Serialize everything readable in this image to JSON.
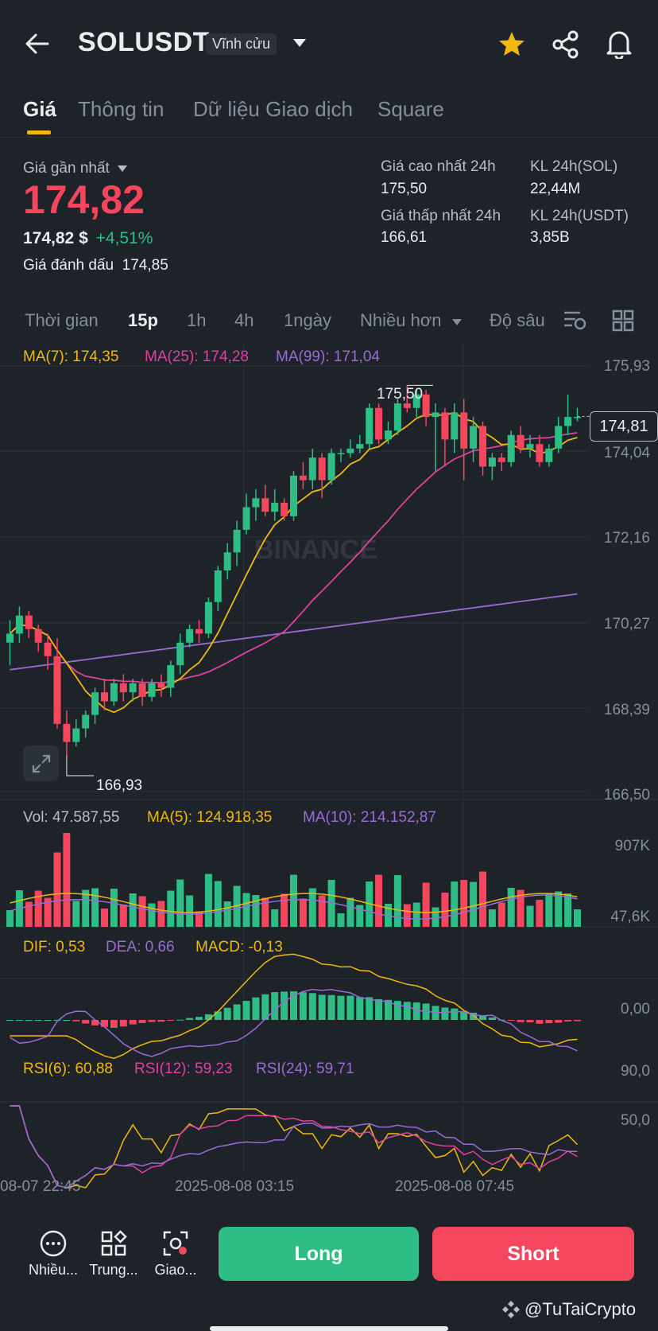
{
  "header": {
    "title": "SOLUSDT",
    "badge": "Vĩnh cửu"
  },
  "tabs": [
    {
      "label": "Giá",
      "active": true
    },
    {
      "label": "Thông tin",
      "active": false
    },
    {
      "label": "Dữ liệu Giao dịch",
      "active": false
    },
    {
      "label": "Square",
      "active": false
    }
  ],
  "price": {
    "last_label": "Giá gần nhất",
    "last_value": "174,82",
    "usd_value": "174,82 $",
    "change": "+4,51%",
    "mark_label": "Giá đánh dấu",
    "mark_value": "174,85"
  },
  "stats": {
    "high_label": "Giá cao nhất 24h",
    "high_value": "175,50",
    "low_label": "Giá thấp nhất 24h",
    "low_value": "166,61",
    "vol_sol_label": "KL 24h(SOL)",
    "vol_sol_value": "22,44M",
    "vol_usdt_label": "KL 24h(USDT)",
    "vol_usdt_value": "3,85B"
  },
  "timeframes": [
    {
      "label": "Thời gian",
      "active": false
    },
    {
      "label": "15p",
      "active": true
    },
    {
      "label": "1h",
      "active": false
    },
    {
      "label": "4h",
      "active": false
    },
    {
      "label": "1ngày",
      "active": false
    },
    {
      "label": "Nhiều hơn",
      "active": false
    },
    {
      "label": "Độ sâu",
      "active": false
    }
  ],
  "indicators": {
    "ma7": "MA(7): 174,35",
    "ma25": "MA(25): 174,28",
    "ma99": "MA(99): 171,04",
    "vol": "Vol: 47.587,55",
    "vol_ma5": "MA(5): 124.918,35",
    "vol_ma10": "MA(10): 214.152,87",
    "dif": "DIF: 0,53",
    "dea": "DEA: 0,66",
    "macd": "MACD: -0,13",
    "rsi6": "RSI(6): 60,88",
    "rsi12": "RSI(12): 59,23",
    "rsi24": "RSI(24): 59,71"
  },
  "price_axis": [
    "175,93",
    "174,04",
    "172,16",
    "170,27",
    "168,39",
    "166,50"
  ],
  "current_price_tag": "174,81",
  "high_annotation": "175,50",
  "low_annotation": "166,93",
  "watermark": "BINANCE",
  "vol_axis": [
    "907K",
    "47,6K"
  ],
  "macd_axis": [
    "0,00"
  ],
  "rsi_axis": [
    "90,0",
    "50,0"
  ],
  "time_axis": [
    "08-07 22:45",
    "2025-08-08 03:15",
    "2025-08-08 07:45"
  ],
  "bottom_nav": [
    {
      "label": "Nhiều..."
    },
    {
      "label": "Trung..."
    },
    {
      "label": "Giao..."
    }
  ],
  "actions": {
    "long": "Long",
    "short": "Short"
  },
  "credit": "@TuTaiCrypto",
  "colors": {
    "up": "#2ebd85",
    "down": "#f6465d",
    "accent": "#f0b90b",
    "ma7": "#f0b90b",
    "ma25": "#e040a0",
    "ma99": "#9b6bd6",
    "bg": "#1e2329"
  },
  "chart_data": {
    "type": "candlestick",
    "ylim": [
      166.5,
      175.93
    ],
    "candles": [
      [
        169.8,
        170.3,
        169.3,
        170.0
      ],
      [
        170.0,
        170.6,
        169.8,
        170.4
      ],
      [
        170.4,
        170.5,
        169.9,
        170.1
      ],
      [
        170.1,
        170.2,
        169.6,
        169.8
      ],
      [
        169.8,
        170.0,
        169.2,
        169.5
      ],
      [
        169.5,
        169.9,
        167.9,
        168.0
      ],
      [
        168.0,
        168.3,
        167.3,
        167.6
      ],
      [
        167.6,
        168.1,
        167.5,
        167.9
      ],
      [
        167.9,
        168.3,
        167.7,
        168.2
      ],
      [
        168.2,
        168.8,
        168.0,
        168.7
      ],
      [
        168.7,
        169.0,
        168.3,
        168.5
      ],
      [
        168.5,
        169.0,
        168.4,
        168.9
      ],
      [
        168.9,
        169.1,
        168.5,
        168.7
      ],
      [
        168.7,
        169.0,
        168.5,
        168.9
      ],
      [
        168.9,
        169.0,
        168.4,
        168.6
      ],
      [
        168.6,
        169.0,
        168.5,
        168.9
      ],
      [
        168.9,
        169.1,
        168.6,
        168.8
      ],
      [
        168.8,
        169.4,
        168.6,
        169.3
      ],
      [
        169.3,
        170.0,
        169.1,
        169.8
      ],
      [
        169.8,
        170.2,
        169.7,
        170.1
      ],
      [
        170.1,
        170.3,
        169.8,
        170.0
      ],
      [
        170.0,
        170.8,
        169.9,
        170.7
      ],
      [
        170.7,
        171.5,
        170.5,
        171.4
      ],
      [
        171.4,
        172.0,
        171.2,
        171.8
      ],
      [
        171.8,
        172.5,
        171.5,
        172.3
      ],
      [
        172.3,
        173.1,
        172.2,
        172.8
      ],
      [
        172.8,
        173.2,
        172.5,
        173.0
      ],
      [
        173.0,
        173.3,
        172.6,
        172.7
      ],
      [
        172.7,
        173.2,
        172.5,
        172.9
      ],
      [
        172.9,
        173.0,
        172.5,
        172.6
      ],
      [
        172.6,
        173.6,
        172.5,
        173.5
      ],
      [
        173.5,
        173.8,
        173.2,
        173.4
      ],
      [
        173.4,
        174.1,
        173.2,
        173.9
      ],
      [
        173.9,
        174.0,
        173.0,
        173.4
      ],
      [
        173.4,
        174.1,
        173.3,
        174.0
      ],
      [
        174.0,
        174.1,
        173.8,
        174.0
      ],
      [
        174.0,
        174.3,
        173.9,
        174.1
      ],
      [
        174.1,
        174.4,
        174.0,
        174.2
      ],
      [
        174.2,
        175.1,
        174.1,
        175.0
      ],
      [
        175.0,
        175.1,
        174.2,
        174.3
      ],
      [
        174.3,
        174.7,
        174.2,
        174.5
      ],
      [
        174.5,
        175.2,
        174.4,
        175.1
      ],
      [
        175.1,
        175.5,
        174.9,
        175.0
      ],
      [
        175.0,
        175.4,
        174.8,
        175.3
      ],
      [
        175.3,
        175.4,
        174.6,
        174.8
      ],
      [
        174.8,
        175.1,
        173.6,
        174.9
      ],
      [
        174.9,
        175.0,
        173.7,
        174.3
      ],
      [
        174.3,
        175.1,
        174.0,
        174.9
      ],
      [
        174.9,
        175.2,
        173.4,
        174.1
      ],
      [
        174.1,
        174.8,
        173.8,
        174.6
      ],
      [
        174.6,
        174.7,
        173.5,
        173.7
      ],
      [
        173.7,
        174.0,
        173.4,
        173.9
      ],
      [
        173.9,
        174.0,
        173.6,
        173.8
      ],
      [
        173.8,
        174.5,
        173.7,
        174.4
      ],
      [
        174.4,
        174.6,
        174.0,
        174.1
      ],
      [
        174.1,
        174.4,
        173.9,
        174.2
      ],
      [
        174.2,
        174.4,
        173.7,
        173.8
      ],
      [
        173.8,
        174.2,
        173.7,
        174.1
      ],
      [
        174.1,
        174.8,
        174.0,
        174.6
      ],
      [
        174.6,
        175.3,
        174.4,
        174.8
      ],
      [
        174.8,
        175.0,
        174.7,
        174.8
      ]
    ]
  }
}
